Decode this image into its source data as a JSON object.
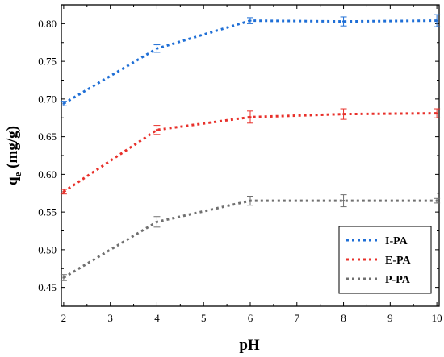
{
  "chart_data": {
    "type": "line",
    "xlabel": "pH",
    "ylabel_main": "q",
    "ylabel_sub": "e",
    "ylabel_unit": " (mg/g)",
    "xlim": [
      1.95,
      10.05
    ],
    "ylim": [
      0.425,
      0.825
    ],
    "x_ticks": [
      2,
      3,
      4,
      5,
      6,
      7,
      8,
      9,
      10
    ],
    "y_ticks": [
      0.45,
      0.5,
      0.55,
      0.6,
      0.65,
      0.7,
      0.75,
      0.8
    ],
    "y_tick_labels": [
      "0.45",
      "0.50",
      "0.55",
      "0.60",
      "0.65",
      "0.70",
      "0.75",
      "0.80"
    ],
    "legend_position": "bottom-right",
    "grid": false,
    "series": [
      {
        "name": "I-PA",
        "color": "#1f6fd6",
        "x": [
          2,
          4,
          6,
          8,
          10
        ],
        "y": [
          0.694,
          0.767,
          0.804,
          0.803,
          0.804
        ],
        "err": [
          0.003,
          0.005,
          0.004,
          0.006,
          0.008
        ]
      },
      {
        "name": "E-PA",
        "color": "#e8302a",
        "x": [
          2,
          4,
          6,
          8,
          10
        ],
        "y": [
          0.577,
          0.659,
          0.676,
          0.68,
          0.681
        ],
        "err": [
          0.003,
          0.006,
          0.008,
          0.007,
          0.006
        ]
      },
      {
        "name": "P-PA",
        "color": "#707070",
        "x": [
          2,
          4,
          6,
          8,
          10
        ],
        "y": [
          0.463,
          0.537,
          0.565,
          0.565,
          0.565
        ],
        "err": [
          0.004,
          0.007,
          0.006,
          0.008,
          0.003
        ]
      }
    ]
  }
}
